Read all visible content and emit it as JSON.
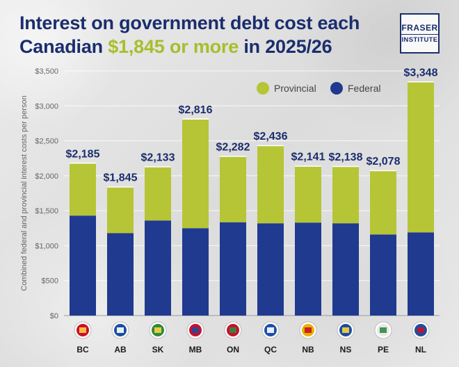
{
  "title": {
    "line1": "Interest on government debt cost each",
    "line2_pre": "Canadian ",
    "line2_hl": "$1,845 or more",
    "line2_post": " in 2025/26"
  },
  "logo": {
    "line1": "FRASER",
    "line2": "INSTITUTE"
  },
  "colors": {
    "provincial": "#b5c536",
    "federal": "#1f3a8f",
    "title": "#1a2d6d",
    "highlight": "#a9bd2c"
  },
  "chart_data": {
    "type": "bar",
    "stacked": true,
    "ylabel": "Combined federal and provincial interest costs per person",
    "ylim": [
      0,
      3500
    ],
    "yticks": [
      "$0",
      "$500",
      "$1,000",
      "$1,500",
      "$2,000",
      "$2,500",
      "$3,000",
      "$3,500"
    ],
    "categories": [
      "BC",
      "AB",
      "SK",
      "MB",
      "ON",
      "QC",
      "NB",
      "NS",
      "PE",
      "NL"
    ],
    "series": [
      {
        "name": "Federal",
        "values": [
          1430,
          1180,
          1360,
          1250,
          1335,
          1320,
          1330,
          1320,
          1160,
          1190
        ]
      },
      {
        "name": "Provincial",
        "values": [
          755,
          665,
          773,
          1566,
          947,
          1116,
          811,
          818,
          918,
          2158
        ]
      }
    ],
    "totals": [
      2185,
      1845,
      2133,
      2816,
      2282,
      2436,
      2141,
      2138,
      2078,
      3348
    ],
    "total_labels": [
      "$2,185",
      "$1,845",
      "$2,133",
      "$2,816",
      "$2,282",
      "$2,436",
      "$2,141",
      "$2,138",
      "$2,078",
      "$3,348"
    ],
    "legend": [
      {
        "name": "Provincial",
        "color": "#b5c536"
      },
      {
        "name": "Federal",
        "color": "#1f3a8f"
      }
    ],
    "legend_position": "top-right",
    "grid": true
  }
}
